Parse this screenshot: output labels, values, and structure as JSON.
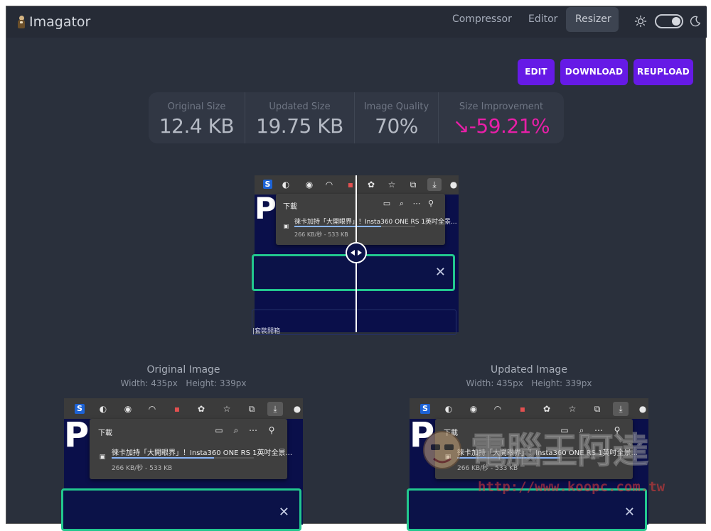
{
  "app": {
    "title": "Imagator"
  },
  "nav": {
    "compressor": "Compressor",
    "editor": "Editor",
    "resizer": "Resizer"
  },
  "actions": {
    "edit": "EDIT",
    "download": "DOWNLOAD",
    "reupload": "REUPLOAD"
  },
  "stats": {
    "original_title": "Original Size",
    "original_value": "12.4 KB",
    "updated_title": "Updated Size",
    "updated_value": "19.75 KB",
    "quality_title": "Image Quality",
    "quality_value": "70%",
    "improvement_title": "Size Improvement",
    "improvement_value": "↘-59.21%"
  },
  "original": {
    "title": "Original Image",
    "dims": "Width: 435px   Height: 339px"
  },
  "updated": {
    "title": "Updated Image",
    "dims": "Width: 435px   Height: 339px"
  },
  "screenshot": {
    "panel_title": "下載",
    "file_name": "徠卡加持「大開眼界」！Insta360 ONE RS 1英吋全景...",
    "file_size": "266 KB/秒 - 533 KB",
    "big_letter": "P",
    "bottom_text": "|套裝開箱",
    "close_glyph": "✕",
    "toolbar_s": "S",
    "progress": 0.72
  },
  "watermark": {
    "text": "電腦王阿達",
    "url": "http://www.koopc.com.tw"
  },
  "colors": {
    "background": "#2a303c",
    "primary": "#661ae6",
    "improvement": "#e81fa8",
    "accent_green": "#22c78e"
  }
}
